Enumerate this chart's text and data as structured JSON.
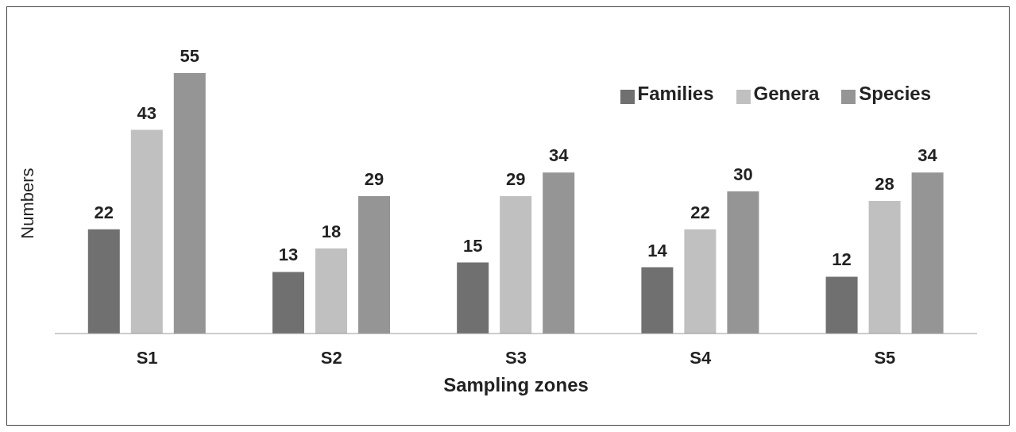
{
  "chart_data": {
    "type": "bar",
    "xlabel": "Sampling zones",
    "ylabel": "Numbers",
    "categories": [
      "S1",
      "S2",
      "S3",
      "S4",
      "S5"
    ],
    "series": [
      {
        "name": "Families",
        "color": "#707070",
        "values": [
          22,
          13,
          15,
          14,
          12
        ]
      },
      {
        "name": "Genera",
        "color": "#c0c0c0",
        "values": [
          43,
          18,
          29,
          22,
          28
        ]
      },
      {
        "name": "Species",
        "color": "#959595",
        "values": [
          55,
          29,
          34,
          30,
          34
        ]
      }
    ],
    "data_labels": true,
    "legend": "top right",
    "grid": false
  }
}
